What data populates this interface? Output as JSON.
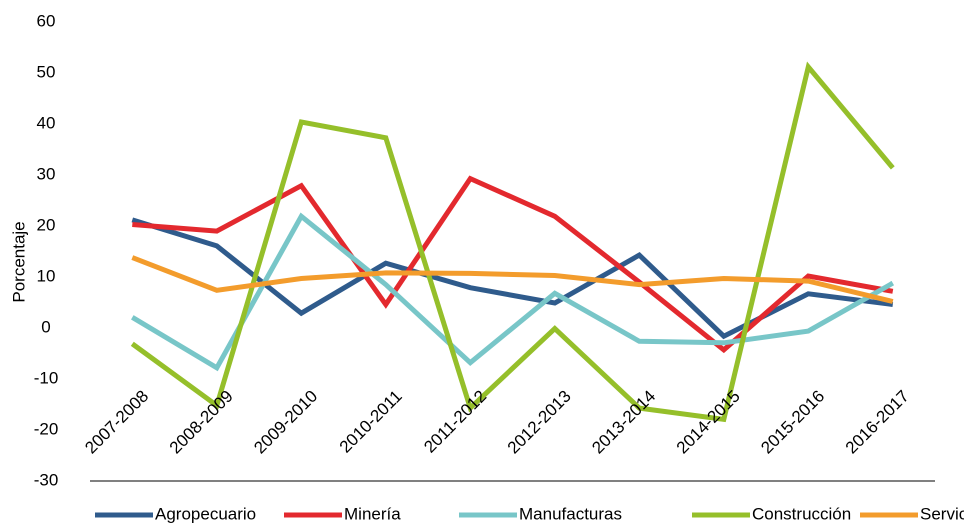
{
  "chart_data": {
    "type": "line",
    "title": "",
    "xlabel": "",
    "ylabel": "Porcentaje",
    "ylim": [
      -30,
      60
    ],
    "yticks": [
      -30,
      -20,
      -10,
      0,
      10,
      20,
      30,
      40,
      50,
      60
    ],
    "grid": false,
    "legend_position": "bottom",
    "categories": [
      "2007-2008",
      "2008-2009",
      "2009-2010",
      "2010-2011",
      "2011-2012",
      "2012-2013",
      "2013-2014",
      "2014-2015",
      "2015-2016",
      "2016-2017"
    ],
    "series": [
      {
        "name": "Agropecuario",
        "color": "#2f5b8c",
        "values": [
          21.2,
          16.1,
          2.9,
          12.7,
          7.9,
          4.9,
          14.3,
          -1.6,
          6.7,
          4.6
        ]
      },
      {
        "name": "Minería",
        "color": "#e3292e",
        "values": [
          20.3,
          19.0,
          27.9,
          4.6,
          29.3,
          21.9,
          9.0,
          -4.3,
          10.2,
          7.2
        ]
      },
      {
        "name": "Manufacturas",
        "color": "#78c6c8",
        "values": [
          2.1,
          -7.8,
          21.9,
          8.5,
          -6.8,
          6.8,
          -2.6,
          -2.9,
          -0.6,
          8.8
        ]
      },
      {
        "name": "Construcción",
        "color": "#95bf2a",
        "values": [
          -3.1,
          -15.2,
          40.4,
          37.3,
          -15.7,
          -0.1,
          -15.7,
          -17.9,
          51.2,
          31.4
        ]
      },
      {
        "name": "Servicios",
        "color": "#f39c2c",
        "values": [
          13.8,
          7.4,
          9.7,
          10.8,
          10.7,
          10.3,
          8.5,
          9.7,
          9.2,
          5.2
        ]
      }
    ]
  }
}
